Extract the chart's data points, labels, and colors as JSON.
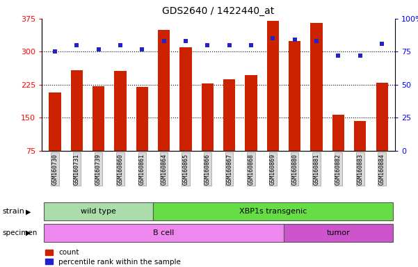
{
  "title": "GDS2640 / 1422440_at",
  "samples": [
    "GSM160730",
    "GSM160731",
    "GSM160739",
    "GSM160860",
    "GSM160861",
    "GSM160864",
    "GSM160865",
    "GSM160866",
    "GSM160867",
    "GSM160868",
    "GSM160869",
    "GSM160880",
    "GSM160881",
    "GSM160882",
    "GSM160883",
    "GSM160884"
  ],
  "counts": [
    207,
    258,
    222,
    257,
    220,
    350,
    310,
    228,
    237,
    247,
    370,
    325,
    365,
    157,
    143,
    230
  ],
  "percentiles": [
    75,
    80,
    77,
    80,
    77,
    83,
    83,
    80,
    80,
    80,
    85,
    84,
    83,
    72,
    72,
    81
  ],
  "ymin": 75,
  "ymax": 375,
  "yticks_left": [
    75,
    150,
    225,
    300,
    375
  ],
  "yticks_right": [
    0,
    25,
    50,
    75,
    100
  ],
  "bar_color": "#cc2200",
  "dot_color": "#2222cc",
  "strain_groups": [
    {
      "label": "wild type",
      "start": 0,
      "end": 5,
      "color": "#aaddaa"
    },
    {
      "label": "XBP1s transgenic",
      "start": 5,
      "end": 16,
      "color": "#66dd44"
    }
  ],
  "specimen_groups": [
    {
      "label": "B cell",
      "start": 0,
      "end": 11,
      "color": "#ee88ee"
    },
    {
      "label": "tumor",
      "start": 11,
      "end": 16,
      "color": "#cc55cc"
    }
  ],
  "legend_count_color": "#cc2200",
  "legend_dot_color": "#2222cc",
  "plot_bg": "#ffffff"
}
